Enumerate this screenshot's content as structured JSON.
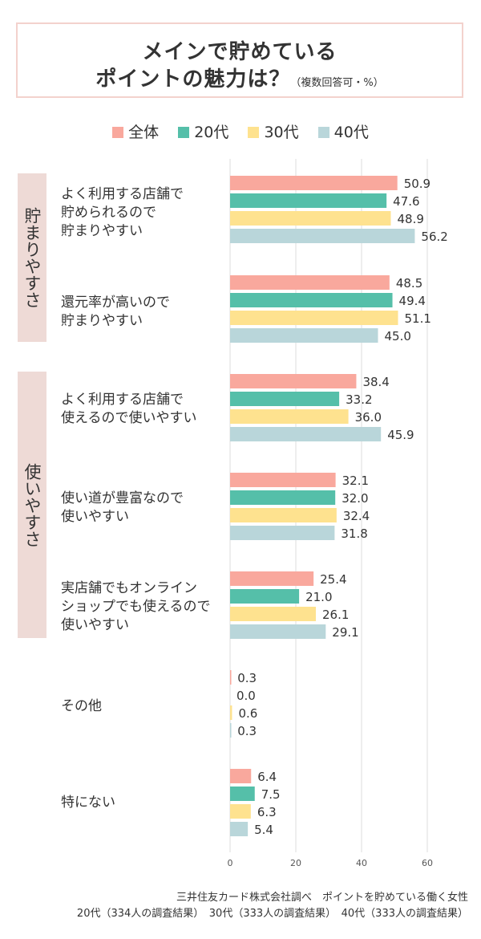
{
  "title": {
    "line1": "メインで貯めている",
    "line2": "ポイントの魅力は？",
    "note": "（複数回答可・%）"
  },
  "colors": {
    "series": [
      "#f9a89d",
      "#55bfa9",
      "#fee28f",
      "#b9d6da"
    ],
    "group_band": "#eedad6",
    "grid": "#dddddd"
  },
  "groups": [
    {
      "label": "貯まりやすさ"
    },
    {
      "label": "使いやすさ"
    }
  ],
  "categories": [
    {
      "label": "よく利用する店舗で\n貯められるので\n貯まりやすい"
    },
    {
      "label": "還元率が高いので\n貯まりやすい"
    },
    {
      "label": "よく利用する店舗で\n使えるので使いやすい"
    },
    {
      "label": "使い道が豊富なので\n使いやすい"
    },
    {
      "label": "実店舗でもオンライン\nショップでも使えるので\n使いやすい"
    },
    {
      "label": "その他"
    },
    {
      "label": "特にない"
    }
  ],
  "source": {
    "line1": "三井住友カード株式会社調べ　ポイントを貯めている働く女性",
    "line2": "20代（334人の調査結果）　30代（333人の調査結果）　40代（333人の調査結果）"
  },
  "chart_data": {
    "type": "bar",
    "orientation": "horizontal",
    "title": "メインで貯めているポイントの魅力は？（複数回答可・%）",
    "categories": [
      "よく利用する店舗で貯められるので貯まりやすい",
      "還元率が高いので貯まりやすい",
      "よく利用する店舗で使えるので使いやすい",
      "使い道が豊富なので使いやすい",
      "実店舗でもオンラインショップでも使えるので使いやすい",
      "その他",
      "特にない"
    ],
    "series": [
      {
        "name": "全体",
        "values": [
          50.9,
          48.5,
          38.4,
          32.1,
          25.4,
          0.3,
          6.4
        ]
      },
      {
        "name": "20代",
        "values": [
          47.6,
          49.4,
          33.2,
          32.0,
          21.0,
          0.0,
          7.5
        ]
      },
      {
        "name": "30代",
        "values": [
          48.9,
          51.1,
          36.0,
          32.4,
          26.1,
          0.6,
          6.3
        ]
      },
      {
        "name": "40代",
        "values": [
          56.2,
          45.0,
          45.9,
          31.8,
          29.1,
          0.3,
          5.4
        ]
      }
    ],
    "value_labels": [
      [
        "50.9",
        "48.5",
        "38.4",
        "32.1",
        "25.4",
        "0.3",
        "6.4"
      ],
      [
        "47.6",
        "49.4",
        "33.2",
        "32.0",
        "21.0",
        "0.0",
        "7.5"
      ],
      [
        "48.9",
        "51.1",
        "36.0",
        "32.4",
        "26.1",
        "0.6",
        "6.3"
      ],
      [
        "56.2",
        "45.0",
        "45.9",
        "31.8",
        "29.1",
        "0.3",
        "5.4"
      ]
    ],
    "xlim": [
      0,
      60
    ],
    "xticks": [
      "0",
      "20",
      "40",
      "60"
    ],
    "grid": true,
    "legend": "top-center"
  }
}
